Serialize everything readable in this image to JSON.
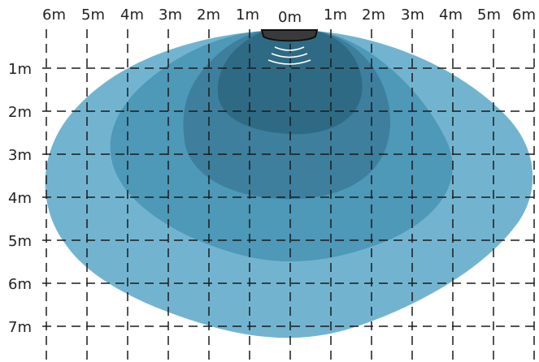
{
  "x_axis": {
    "labels": [
      "6m",
      "5m",
      "4m",
      "3m",
      "2m",
      "1m",
      "0m",
      "1m",
      "2m",
      "3m",
      "4m",
      "5m",
      "6m"
    ]
  },
  "y_axis": {
    "labels": [
      "1m",
      "2m",
      "3m",
      "4m",
      "5m",
      "6m",
      "7m"
    ]
  },
  "colors": {
    "zone_outer": "#72b4d0",
    "zone_mid": "#4e98b8",
    "zone_inner": "#3e7f9d",
    "zone_core": "#2f6a84",
    "sensor": "#3a3a3a",
    "grid": "#1a1a1a",
    "waves": "#ffffff"
  },
  "icons": {
    "sensor": "sensor-icon",
    "waves": "signal-waves-icon"
  }
}
